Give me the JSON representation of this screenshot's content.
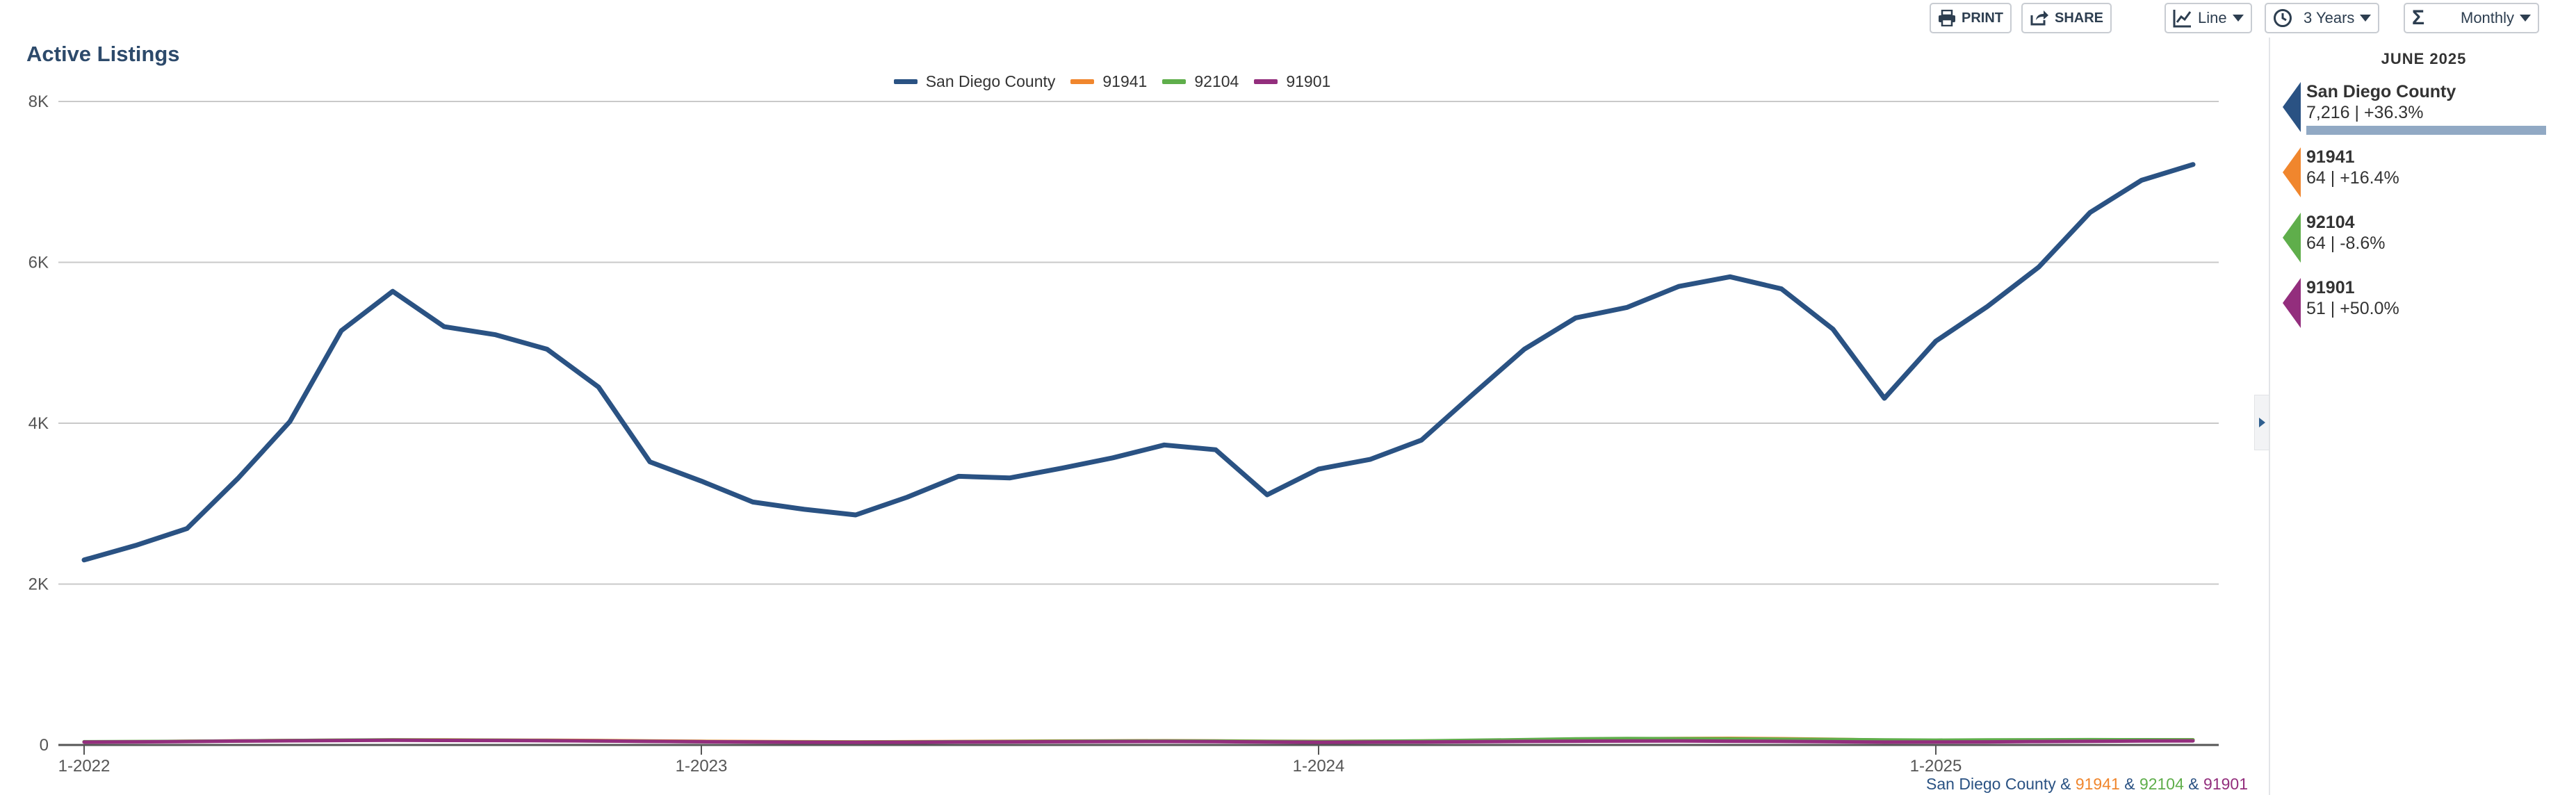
{
  "title": "Active Listings",
  "toolbar": {
    "print_label": "PRINT",
    "share_label": "SHARE",
    "chart_type_label": "Line",
    "range_label": "3 Years",
    "interval_label": "Monthly"
  },
  "side_panel": {
    "date_label": "JUNE 2025",
    "items": [
      {
        "name": "San Diego County",
        "value": "7,216 | +36.3%",
        "color": "#2a5283",
        "bar_fraction": 1.0
      },
      {
        "name": "91941",
        "value": "64 | +16.4%",
        "color": "#f0862d"
      },
      {
        "name": "92104",
        "value": "64 | -8.6%",
        "color": "#5fae4b"
      },
      {
        "name": "91901",
        "value": "51 | +50.0%",
        "color": "#932e7d"
      }
    ]
  },
  "footer": {
    "parts": [
      {
        "text": "San Diego County",
        "color": "#2a5283"
      },
      {
        "text": " & ",
        "color": "#2a5283"
      },
      {
        "text": "91941",
        "color": "#f0862d"
      },
      {
        "text": " & ",
        "color": "#2a5283"
      },
      {
        "text": "92104",
        "color": "#5fae4b"
      },
      {
        "text": " & ",
        "color": "#2a5283"
      },
      {
        "text": "91901",
        "color": "#932e7d"
      }
    ]
  },
  "chart_data": {
    "type": "line",
    "title": "Active Listings",
    "ylim": [
      0,
      8000
    ],
    "y_ticks": [
      0,
      2000,
      4000,
      6000,
      8000
    ],
    "y_tick_labels": [
      "0",
      "2K",
      "4K",
      "6K",
      "8K"
    ],
    "x_ticks": [
      0,
      12,
      24,
      36
    ],
    "x_tick_labels": [
      "1-2022",
      "1-2023",
      "1-2024",
      "1-2025"
    ],
    "grid": true,
    "legend_position": "top-center",
    "x": [
      "1-2022",
      "2-2022",
      "3-2022",
      "4-2022",
      "5-2022",
      "6-2022",
      "7-2022",
      "8-2022",
      "9-2022",
      "10-2022",
      "11-2022",
      "12-2022",
      "1-2023",
      "2-2023",
      "3-2023",
      "4-2023",
      "5-2023",
      "6-2023",
      "7-2023",
      "8-2023",
      "9-2023",
      "10-2023",
      "11-2023",
      "12-2023",
      "1-2024",
      "2-2024",
      "3-2024",
      "4-2024",
      "5-2024",
      "6-2024",
      "7-2024",
      "8-2024",
      "9-2024",
      "10-2024",
      "11-2024",
      "12-2024",
      "1-2025",
      "2-2025",
      "3-2025",
      "4-2025",
      "5-2025",
      "6-2025"
    ],
    "series": [
      {
        "name": "San Diego County",
        "color": "#2a5283",
        "values": [
          2300,
          2480,
          2690,
          3320,
          4020,
          5150,
          5640,
          5200,
          5100,
          4920,
          4450,
          3520,
          3280,
          3020,
          2930,
          2860,
          3080,
          3340,
          3320,
          3440,
          3570,
          3730,
          3670,
          3110,
          3430,
          3550,
          3790,
          4360,
          4920,
          5310,
          5440,
          5700,
          5820,
          5670,
          5170,
          4310,
          5020,
          5450,
          5940,
          6620,
          7020,
          7216
        ]
      },
      {
        "name": "91941",
        "color": "#f0862d",
        "values": [
          38,
          40,
          45,
          50,
          55,
          58,
          62,
          63,
          60,
          58,
          55,
          50,
          45,
          42,
          40,
          38,
          40,
          42,
          45,
          48,
          50,
          52,
          50,
          46,
          44,
          45,
          48,
          55,
          62,
          70,
          75,
          80,
          82,
          78,
          70,
          60,
          55,
          56,
          58,
          60,
          62,
          64
        ]
      },
      {
        "name": "92104",
        "color": "#5fae4b",
        "values": [
          40,
          42,
          45,
          50,
          55,
          60,
          62,
          60,
          58,
          55,
          50,
          45,
          40,
          38,
          36,
          35,
          37,
          40,
          42,
          45,
          48,
          50,
          48,
          44,
          42,
          45,
          50,
          58,
          66,
          75,
          80,
          78,
          76,
          72,
          68,
          62,
          60,
          62,
          64,
          66,
          65,
          64
        ]
      },
      {
        "name": "91901",
        "color": "#932e7d",
        "values": [
          35,
          38,
          42,
          48,
          52,
          55,
          58,
          56,
          55,
          53,
          50,
          44,
          40,
          36,
          34,
          33,
          34,
          36,
          38,
          40,
          42,
          43,
          41,
          37,
          34,
          35,
          37,
          40,
          44,
          47,
          48,
          49,
          47,
          44,
          40,
          35,
          36,
          38,
          42,
          46,
          49,
          51
        ]
      }
    ]
  }
}
